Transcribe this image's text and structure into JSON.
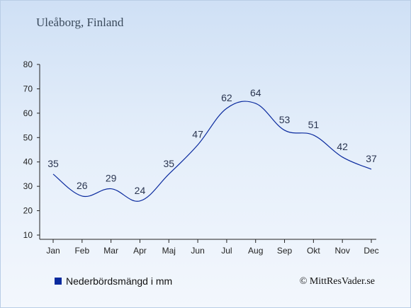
{
  "header": {
    "title": "Uleåborg, Finland"
  },
  "legend": {
    "label": "Nederbördsmängd i mm",
    "color": "#0a2a9e"
  },
  "footer": {
    "copyright": "© MittResVader.se"
  },
  "chart_data": {
    "type": "line",
    "title": "Uleåborg, Finland",
    "categories": [
      "Jan",
      "Feb",
      "Mar",
      "Apr",
      "Maj",
      "Jun",
      "Jul",
      "Aug",
      "Sep",
      "Okt",
      "Nov",
      "Dec"
    ],
    "series": [
      {
        "name": "Nederbördsmängd i mm",
        "values": [
          35,
          26,
          29,
          24,
          35,
          47,
          62,
          64,
          53,
          51,
          42,
          37
        ],
        "color": "#0a2a9e"
      }
    ],
    "ylim": [
      10,
      80
    ],
    "yticks": [
      10,
      20,
      30,
      40,
      50,
      60,
      70,
      80
    ],
    "grid": false,
    "legend_position": "bottom-left"
  }
}
